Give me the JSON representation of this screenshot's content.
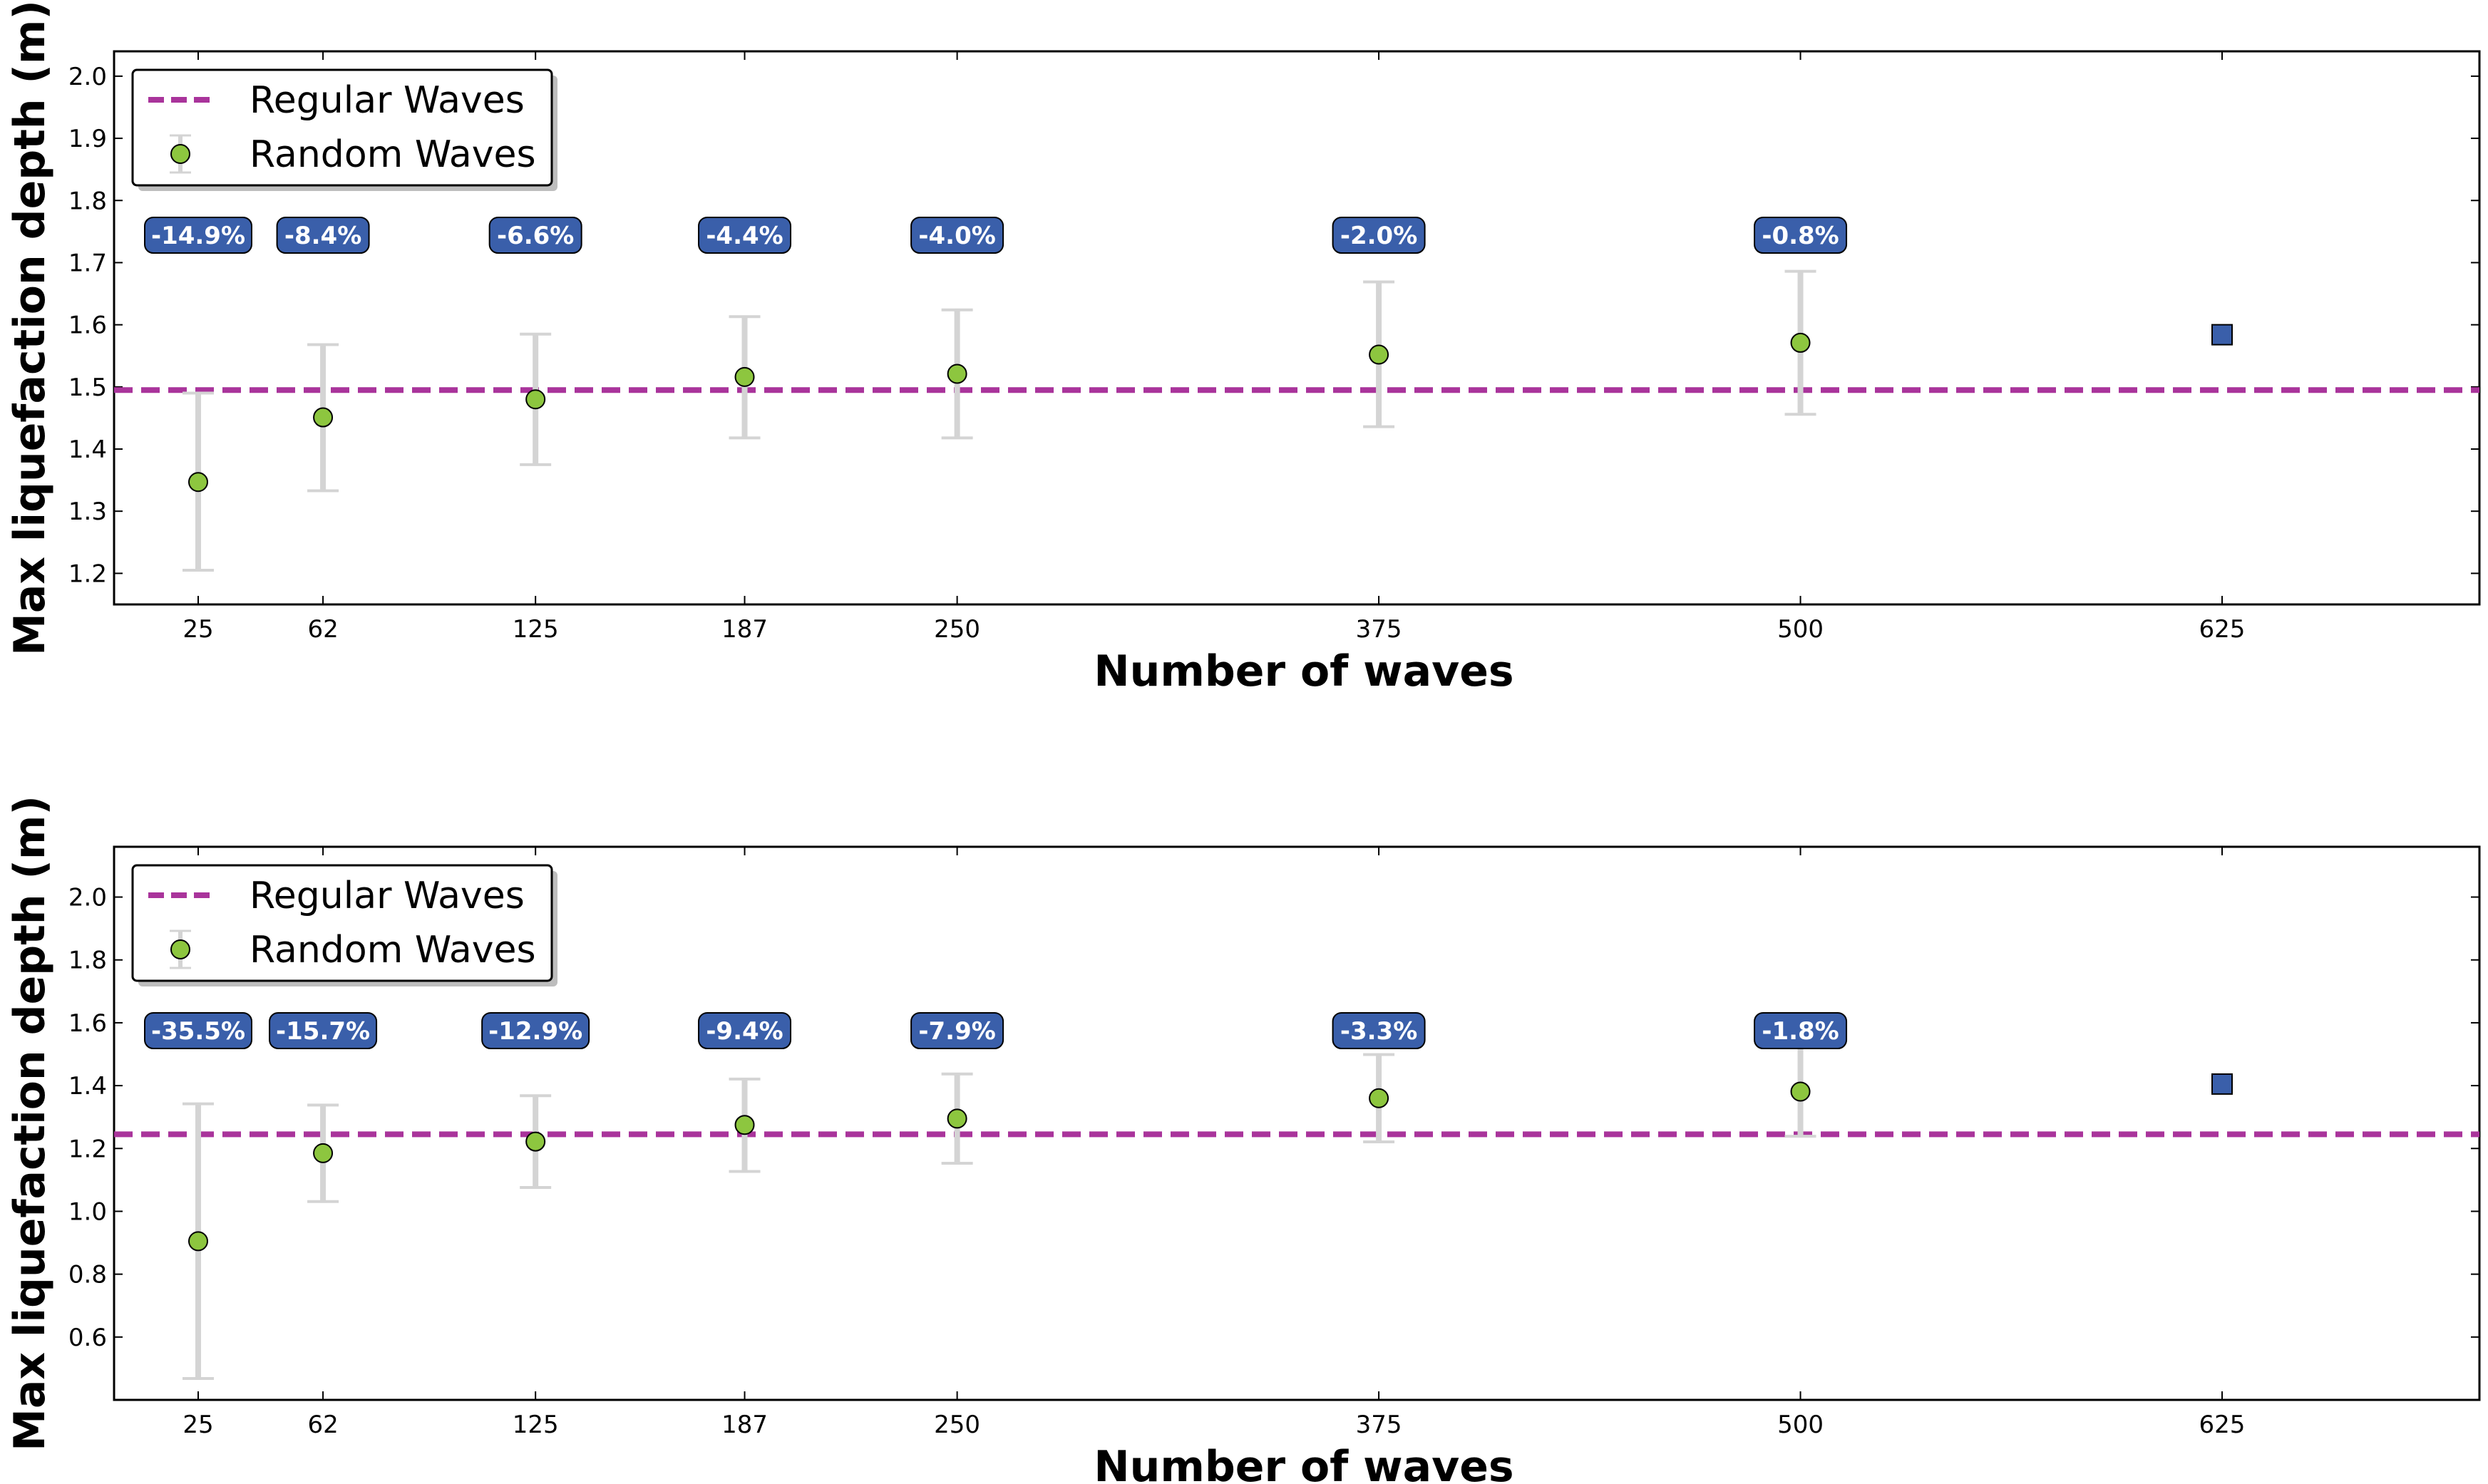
{
  "chart_data": [
    {
      "type": "scatter",
      "xlabel": "Number of waves",
      "ylabel": "Max liquefaction depth (m)",
      "x_ticks": [
        25,
        62,
        125,
        187,
        250,
        375,
        500,
        625
      ],
      "y_ticks": [
        "1.2",
        "1.3",
        "1.4",
        "1.5",
        "1.6",
        "1.7",
        "1.8",
        "1.9",
        "2.0"
      ],
      "ylim": [
        1.15,
        2.04
      ],
      "grid": false,
      "legend_position": "top-left",
      "legend": [
        "Regular Waves",
        "Random Waves"
      ],
      "regular_waves": 1.495,
      "random_waves": {
        "x": [
          25,
          62,
          125,
          187,
          250,
          375,
          500
        ],
        "y": [
          1.347,
          1.451,
          1.48,
          1.516,
          1.521,
          1.552,
          1.571
        ],
        "err_low": [
          1.205,
          1.333,
          1.375,
          1.418,
          1.418,
          1.436,
          1.456
        ],
        "err_high": [
          1.49,
          1.568,
          1.585,
          1.613,
          1.624,
          1.669,
          1.686
        ],
        "percent_labels": [
          "-14.9%",
          "-8.4%",
          "-6.6%",
          "-4.4%",
          "-4.0%",
          "-2.0%",
          "-0.8%"
        ]
      },
      "reference_point": {
        "x": 625,
        "y": 1.584
      }
    },
    {
      "type": "scatter",
      "xlabel": "Number of waves",
      "ylabel": "Max liquefaction depth (m)",
      "x_ticks": [
        25,
        62,
        125,
        187,
        250,
        375,
        500,
        625
      ],
      "y_ticks": [
        "0.6",
        "0.8",
        "1.0",
        "1.2",
        "1.4",
        "1.6",
        "1.8",
        "2.0"
      ],
      "ylim": [
        0.4,
        2.16
      ],
      "grid": false,
      "legend_position": "top-left",
      "legend": [
        "Regular Waves",
        "Random Waves"
      ],
      "regular_waves": 1.245,
      "random_waves": {
        "x": [
          25,
          62,
          125,
          187,
          250,
          375,
          500
        ],
        "y": [
          0.905,
          1.185,
          1.222,
          1.275,
          1.295,
          1.36,
          1.381
        ],
        "err_low": [
          0.468,
          1.031,
          1.076,
          1.127,
          1.153,
          1.221,
          1.239
        ],
        "err_high": [
          1.342,
          1.338,
          1.368,
          1.421,
          1.437,
          1.499,
          1.523
        ],
        "percent_labels": [
          "-35.5%",
          "-15.7%",
          "-12.9%",
          "-9.4%",
          "-7.9%",
          "-3.3%",
          "-1.8%"
        ]
      },
      "reference_point": {
        "x": 625,
        "y": 1.405
      }
    }
  ],
  "colors": {
    "regular_line": "#a9349b",
    "random_marker": "#8dc63f",
    "error_bar": "#d4d4d4",
    "label_box": "#3a5faa",
    "reference_marker": "#3a5faa"
  }
}
